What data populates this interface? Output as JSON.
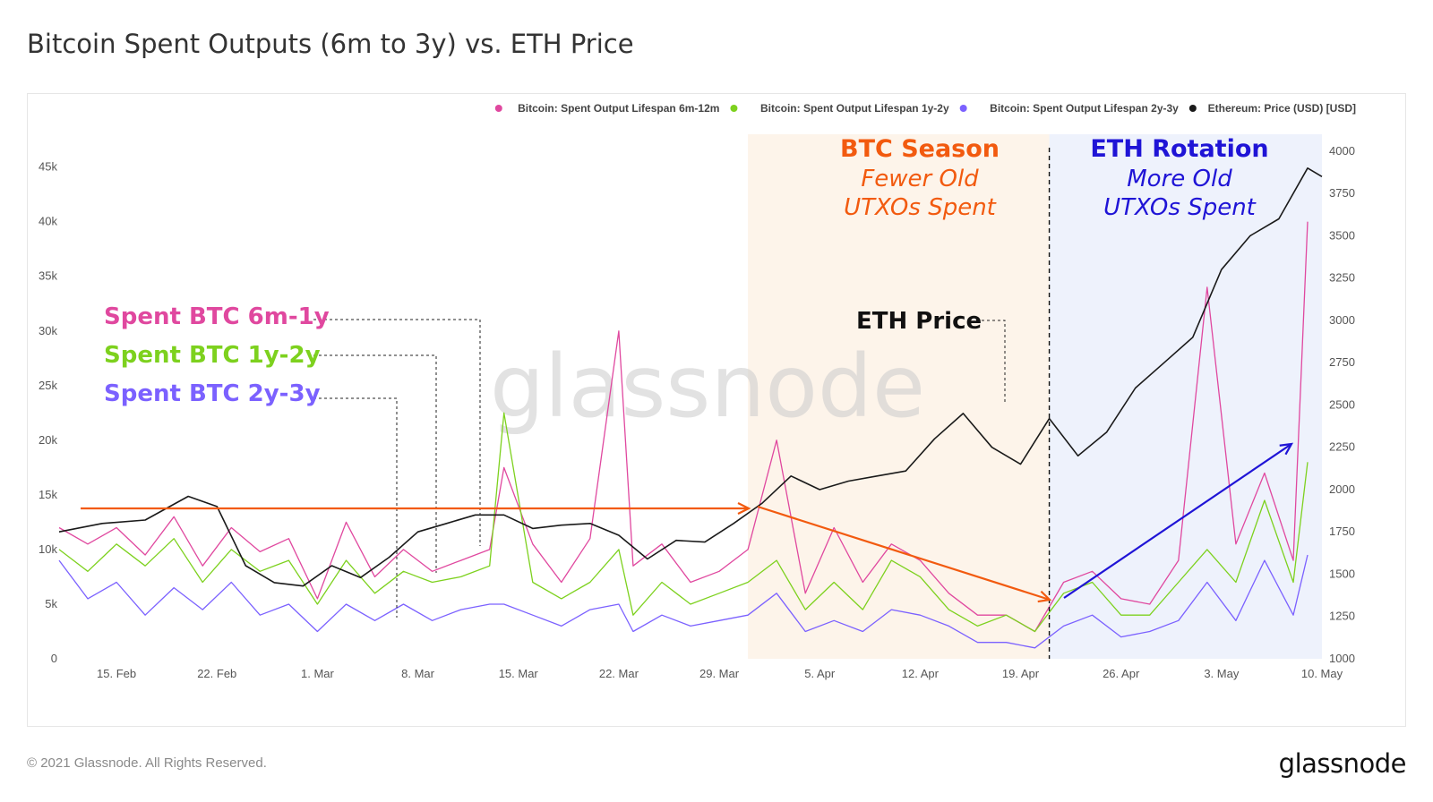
{
  "header": {
    "title": "Bitcoin Spent Outputs (6m to 3y) vs. ETH Price"
  },
  "footer": {
    "copyright": "© 2021 Glassnode. All Rights Reserved.",
    "brand": "glassnode"
  },
  "watermark": "glassnode",
  "colors": {
    "s6m": "#e0489f",
    "s1y": "#7dd11e",
    "s2y": "#7b61ff",
    "eth": "#1a1a1a",
    "orange": "#f25a0f",
    "blue": "#1f14d6",
    "btc_band": "#fdf4ea",
    "eth_band": "#eef2fc"
  },
  "chart_data": {
    "type": "line",
    "x_start": "2021-02-11",
    "x_end": "2021-05-10",
    "x_ticks": [
      "15. Feb",
      "22. Feb",
      "1. Mar",
      "8. Mar",
      "15. Mar",
      "22. Mar",
      "29. Mar",
      "5. Apr",
      "12. Apr",
      "19. Apr",
      "26. Apr",
      "3. May",
      "10. May"
    ],
    "y_left": {
      "ticks": [
        "0",
        "5k",
        "10k",
        "15k",
        "20k",
        "25k",
        "30k",
        "35k",
        "40k",
        "45k"
      ],
      "ylim": [
        0,
        48000
      ]
    },
    "y_right": {
      "ticks": [
        "1000",
        "1250",
        "1500",
        "1750",
        "2000",
        "2250",
        "2500",
        "2750",
        "3000",
        "3250",
        "3500",
        "3750",
        "4000"
      ],
      "ylim": [
        1000,
        4100
      ]
    },
    "legend": {
      "position": "top-right",
      "items": [
        {
          "label": "Bitcoin: Spent Output Lifespan 6m-12m",
          "color": "#e0489f"
        },
        {
          "label": "Bitcoin: Spent Output Lifespan 1y-2y",
          "color": "#7dd11e"
        },
        {
          "label": "Bitcoin: Spent Output Lifespan 2y-3y",
          "color": "#7b61ff"
        },
        {
          "label": "Ethereum: Price (USD) [USD]",
          "color": "#1a1a1a"
        }
      ]
    },
    "series": [
      {
        "name": "Bitcoin: Spent Output Lifespan 6m-12m",
        "axis": "left",
        "x": [
          "2021-02-11",
          "2021-02-13",
          "2021-02-15",
          "2021-02-17",
          "2021-02-19",
          "2021-02-21",
          "2021-02-23",
          "2021-02-25",
          "2021-02-27",
          "2021-03-01",
          "2021-03-03",
          "2021-03-05",
          "2021-03-07",
          "2021-03-09",
          "2021-03-11",
          "2021-03-13",
          "2021-03-14",
          "2021-03-16",
          "2021-03-18",
          "2021-03-20",
          "2021-03-22",
          "2021-03-23",
          "2021-03-25",
          "2021-03-27",
          "2021-03-29",
          "2021-03-31",
          "2021-04-02",
          "2021-04-04",
          "2021-04-06",
          "2021-04-08",
          "2021-04-10",
          "2021-04-12",
          "2021-04-14",
          "2021-04-16",
          "2021-04-18",
          "2021-04-20",
          "2021-04-22",
          "2021-04-24",
          "2021-04-26",
          "2021-04-28",
          "2021-04-30",
          "2021-05-02",
          "2021-05-04",
          "2021-05-06",
          "2021-05-08",
          "2021-05-09"
        ],
        "values": [
          12000,
          10500,
          12000,
          9500,
          13000,
          8500,
          12000,
          9800,
          11000,
          5500,
          12500,
          7500,
          10000,
          8000,
          9000,
          10000,
          17500,
          10500,
          7000,
          11000,
          30000,
          8500,
          10500,
          7000,
          8000,
          10000,
          20000,
          6000,
          12000,
          7000,
          10500,
          9000,
          6000,
          4000,
          4000,
          2500,
          7000,
          8000,
          5500,
          5000,
          9000,
          34000,
          10500,
          17000,
          9000,
          40000
        ]
      },
      {
        "name": "Bitcoin: Spent Output Lifespan 1y-2y",
        "axis": "left",
        "x": [
          "2021-02-11",
          "2021-02-13",
          "2021-02-15",
          "2021-02-17",
          "2021-02-19",
          "2021-02-21",
          "2021-02-23",
          "2021-02-25",
          "2021-02-27",
          "2021-03-01",
          "2021-03-03",
          "2021-03-05",
          "2021-03-07",
          "2021-03-09",
          "2021-03-11",
          "2021-03-13",
          "2021-03-14",
          "2021-03-16",
          "2021-03-18",
          "2021-03-20",
          "2021-03-22",
          "2021-03-23",
          "2021-03-25",
          "2021-03-27",
          "2021-03-29",
          "2021-03-31",
          "2021-04-02",
          "2021-04-04",
          "2021-04-06",
          "2021-04-08",
          "2021-04-10",
          "2021-04-12",
          "2021-04-14",
          "2021-04-16",
          "2021-04-18",
          "2021-04-20",
          "2021-04-22",
          "2021-04-24",
          "2021-04-26",
          "2021-04-28",
          "2021-04-30",
          "2021-05-02",
          "2021-05-04",
          "2021-05-06",
          "2021-05-08",
          "2021-05-09"
        ],
        "values": [
          10000,
          8000,
          10500,
          8500,
          11000,
          7000,
          10000,
          8000,
          9000,
          5000,
          9000,
          6000,
          8000,
          7000,
          7500,
          8500,
          22500,
          7000,
          5500,
          7000,
          10000,
          4000,
          7000,
          5000,
          6000,
          7000,
          9000,
          4500,
          7000,
          4500,
          9000,
          7500,
          4500,
          3000,
          4000,
          2500,
          6000,
          7000,
          4000,
          4000,
          7000,
          10000,
          7000,
          14500,
          7000,
          18000
        ]
      },
      {
        "name": "Bitcoin: Spent Output Lifespan 2y-3y",
        "axis": "left",
        "x": [
          "2021-02-11",
          "2021-02-13",
          "2021-02-15",
          "2021-02-17",
          "2021-02-19",
          "2021-02-21",
          "2021-02-23",
          "2021-02-25",
          "2021-02-27",
          "2021-03-01",
          "2021-03-03",
          "2021-03-05",
          "2021-03-07",
          "2021-03-09",
          "2021-03-11",
          "2021-03-13",
          "2021-03-14",
          "2021-03-16",
          "2021-03-18",
          "2021-03-20",
          "2021-03-22",
          "2021-03-23",
          "2021-03-25",
          "2021-03-27",
          "2021-03-29",
          "2021-03-31",
          "2021-04-02",
          "2021-04-04",
          "2021-04-06",
          "2021-04-08",
          "2021-04-10",
          "2021-04-12",
          "2021-04-14",
          "2021-04-16",
          "2021-04-18",
          "2021-04-20",
          "2021-04-22",
          "2021-04-24",
          "2021-04-26",
          "2021-04-28",
          "2021-04-30",
          "2021-05-02",
          "2021-05-04",
          "2021-05-06",
          "2021-05-08",
          "2021-05-09"
        ],
        "values": [
          9000,
          5500,
          7000,
          4000,
          6500,
          4500,
          7000,
          4000,
          5000,
          2500,
          5000,
          3500,
          5000,
          3500,
          4500,
          5000,
          5000,
          4000,
          3000,
          4500,
          5000,
          2500,
          4000,
          3000,
          3500,
          4000,
          6000,
          2500,
          3500,
          2500,
          4500,
          4000,
          3000,
          1500,
          1500,
          1000,
          3000,
          4000,
          2000,
          2500,
          3500,
          7000,
          3500,
          9000,
          4000,
          9500
        ]
      },
      {
        "name": "Ethereum: Price (USD) [USD]",
        "axis": "right",
        "x": [
          "2021-02-11",
          "2021-02-14",
          "2021-02-17",
          "2021-02-20",
          "2021-02-22",
          "2021-02-24",
          "2021-02-26",
          "2021-02-28",
          "2021-03-02",
          "2021-03-04",
          "2021-03-06",
          "2021-03-08",
          "2021-03-10",
          "2021-03-12",
          "2021-03-14",
          "2021-03-16",
          "2021-03-18",
          "2021-03-20",
          "2021-03-22",
          "2021-03-24",
          "2021-03-26",
          "2021-03-28",
          "2021-03-30",
          "2021-04-01",
          "2021-04-03",
          "2021-04-05",
          "2021-04-07",
          "2021-04-09",
          "2021-04-11",
          "2021-04-13",
          "2021-04-15",
          "2021-04-17",
          "2021-04-19",
          "2021-04-21",
          "2021-04-23",
          "2021-04-25",
          "2021-04-27",
          "2021-04-29",
          "2021-05-01",
          "2021-05-03",
          "2021-05-05",
          "2021-05-07",
          "2021-05-09",
          "2021-05-10"
        ],
        "values": [
          1750,
          1800,
          1820,
          1960,
          1900,
          1550,
          1450,
          1430,
          1550,
          1480,
          1600,
          1750,
          1800,
          1850,
          1850,
          1770,
          1790,
          1800,
          1730,
          1590,
          1700,
          1690,
          1800,
          1920,
          2080,
          2000,
          2050,
          2080,
          2110,
          2300,
          2450,
          2250,
          2150,
          2420,
          2200,
          2340,
          2600,
          2750,
          2900,
          3300,
          3500,
          3600,
          3900,
          3850
        ]
      }
    ],
    "annotations": {
      "spent_6m": "Spent BTC 6m-1y",
      "spent_1y": "Spent BTC 1y-2y",
      "spent_2y": "Spent BTC 2y-3y",
      "eth_price": "ETH Price",
      "btc_season": "BTC Season",
      "btc_season_sub1": "Fewer Old",
      "btc_season_sub2": "UTXOs Spent",
      "eth_rotation": "ETH Rotation",
      "eth_rotation_sub1": "More Old",
      "eth_rotation_sub2": "UTXOs Spent"
    }
  }
}
